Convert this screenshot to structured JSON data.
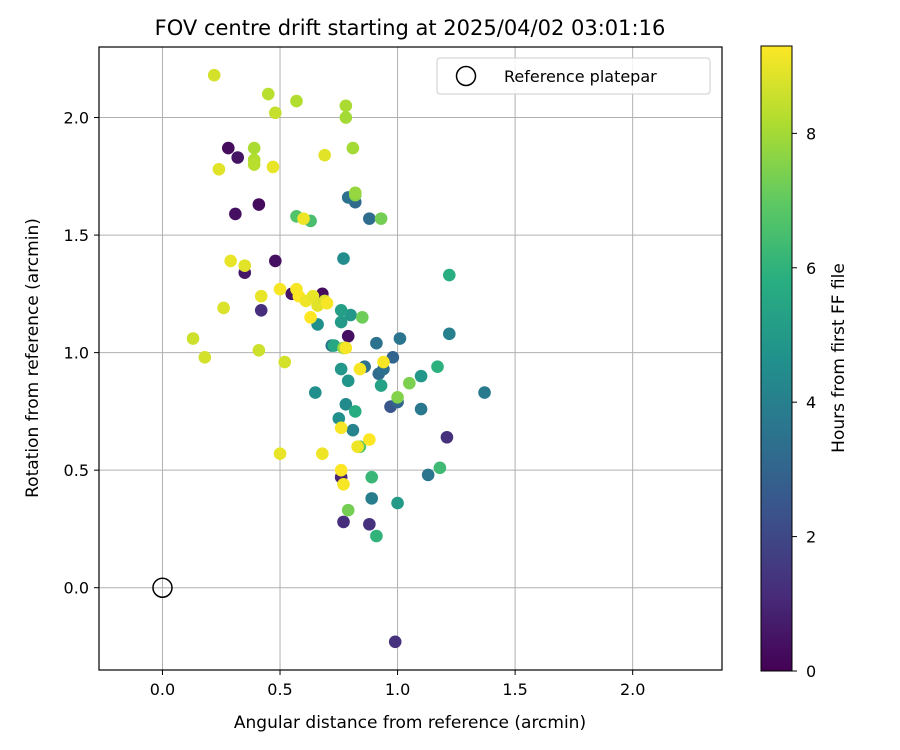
{
  "chart_data": {
    "type": "scatter",
    "title": "FOV centre drift starting at 2025/04/02 03:01:16",
    "xlabel": "Angular distance from reference (arcmin)",
    "ylabel": "Rotation from reference (arcmin)",
    "xlim": [
      -0.27,
      2.38
    ],
    "ylim": [
      -0.35,
      2.3
    ],
    "xticks": [
      0.0,
      0.5,
      1.0,
      1.5,
      2.0
    ],
    "xtick_labels": [
      "0.0",
      "0.5",
      "1.0",
      "1.5",
      "2.0"
    ],
    "yticks": [
      0.0,
      0.5,
      1.0,
      1.5,
      2.0
    ],
    "ytick_labels": [
      "0.0",
      "0.5",
      "1.0",
      "1.5",
      "2.0"
    ],
    "grid": true,
    "colormap": "viridis",
    "colorbar": {
      "label": "Hours from first FF file",
      "range": [
        0,
        9.3
      ],
      "ticks": [
        0,
        2,
        4,
        6,
        8
      ],
      "tick_labels": [
        "0",
        "2",
        "4",
        "6",
        "8"
      ]
    },
    "legend": {
      "placement": "top-right",
      "entries": [
        {
          "label": "Reference platepar",
          "marker": "open-circle",
          "color": "#000000"
        }
      ]
    },
    "reference_point": {
      "x": 0.0,
      "y": 0.0
    },
    "points": [
      {
        "x": 0.28,
        "y": 1.87,
        "h": 0.3
      },
      {
        "x": 0.32,
        "y": 1.83,
        "h": 0.5
      },
      {
        "x": 0.31,
        "y": 1.59,
        "h": 0.4
      },
      {
        "x": 0.41,
        "y": 1.63,
        "h": 0.3
      },
      {
        "x": 0.35,
        "y": 1.34,
        "h": 0.6
      },
      {
        "x": 0.48,
        "y": 1.39,
        "h": 0.4
      },
      {
        "x": 0.42,
        "y": 1.18,
        "h": 1.2
      },
      {
        "x": 0.55,
        "y": 1.25,
        "h": 0.5
      },
      {
        "x": 0.68,
        "y": 1.25,
        "h": 0.3
      },
      {
        "x": 0.79,
        "y": 1.07,
        "h": 0.4
      },
      {
        "x": 0.76,
        "y": 0.47,
        "h": 1.0
      },
      {
        "x": 0.77,
        "y": 0.28,
        "h": 1.2
      },
      {
        "x": 0.88,
        "y": 0.27,
        "h": 1.3
      },
      {
        "x": 0.99,
        "y": -0.23,
        "h": 1.3
      },
      {
        "x": 1.21,
        "y": 0.64,
        "h": 1.3
      },
      {
        "x": 0.97,
        "y": 0.77,
        "h": 2.5
      },
      {
        "x": 0.98,
        "y": 0.98,
        "h": 3.0
      },
      {
        "x": 0.91,
        "y": 1.04,
        "h": 3.5
      },
      {
        "x": 0.82,
        "y": 1.64,
        "h": 3.2
      },
      {
        "x": 0.79,
        "y": 1.66,
        "h": 3.5
      },
      {
        "x": 0.88,
        "y": 1.57,
        "h": 3.3
      },
      {
        "x": 0.72,
        "y": 1.03,
        "h": 3.8
      },
      {
        "x": 0.86,
        "y": 0.94,
        "h": 3.5
      },
      {
        "x": 0.92,
        "y": 0.91,
        "h": 3.2
      },
      {
        "x": 0.94,
        "y": 0.93,
        "h": 3.4
      },
      {
        "x": 1.01,
        "y": 1.06,
        "h": 3.6
      },
      {
        "x": 1.22,
        "y": 1.08,
        "h": 4.0
      },
      {
        "x": 1.37,
        "y": 0.83,
        "h": 3.8
      },
      {
        "x": 1.1,
        "y": 0.76,
        "h": 3.7
      },
      {
        "x": 1.13,
        "y": 0.48,
        "h": 3.6
      },
      {
        "x": 0.89,
        "y": 0.38,
        "h": 3.9
      },
      {
        "x": 0.81,
        "y": 0.67,
        "h": 4.1
      },
      {
        "x": 0.78,
        "y": 0.78,
        "h": 4.4
      },
      {
        "x": 0.75,
        "y": 0.72,
        "h": 4.6
      },
      {
        "x": 0.77,
        "y": 1.4,
        "h": 4.5
      },
      {
        "x": 0.66,
        "y": 1.12,
        "h": 4.6
      },
      {
        "x": 0.65,
        "y": 0.83,
        "h": 4.6
      },
      {
        "x": 1.0,
        "y": 0.79,
        "h": 3.0
      },
      {
        "x": 0.79,
        "y": 0.88,
        "h": 4.8
      },
      {
        "x": 0.76,
        "y": 0.93,
        "h": 4.9
      },
      {
        "x": 0.76,
        "y": 1.13,
        "h": 5.0
      },
      {
        "x": 0.8,
        "y": 1.16,
        "h": 4.9
      },
      {
        "x": 1.1,
        "y": 0.9,
        "h": 4.9
      },
      {
        "x": 1.0,
        "y": 0.36,
        "h": 5.0
      },
      {
        "x": 0.76,
        "y": 1.18,
        "h": 5.2
      },
      {
        "x": 0.93,
        "y": 0.86,
        "h": 5.3
      },
      {
        "x": 0.82,
        "y": 0.75,
        "h": 5.7
      },
      {
        "x": 0.73,
        "y": 1.03,
        "h": 5.5
      },
      {
        "x": 1.22,
        "y": 1.33,
        "h": 5.8
      },
      {
        "x": 1.17,
        "y": 0.94,
        "h": 5.9
      },
      {
        "x": 0.91,
        "y": 0.22,
        "h": 6.0
      },
      {
        "x": 0.89,
        "y": 0.47,
        "h": 6.2
      },
      {
        "x": 1.18,
        "y": 0.51,
        "h": 6.3
      },
      {
        "x": 0.63,
        "y": 1.56,
        "h": 6.5
      },
      {
        "x": 0.57,
        "y": 1.58,
        "h": 6.7
      },
      {
        "x": 0.84,
        "y": 0.6,
        "h": 6.8
      },
      {
        "x": 0.93,
        "y": 1.57,
        "h": 7.3
      },
      {
        "x": 0.85,
        "y": 1.15,
        "h": 7.2
      },
      {
        "x": 1.0,
        "y": 0.81,
        "h": 7.5
      },
      {
        "x": 1.05,
        "y": 0.87,
        "h": 7.4
      },
      {
        "x": 0.79,
        "y": 0.33,
        "h": 7.3
      },
      {
        "x": 0.82,
        "y": 1.67,
        "h": 7.6
      },
      {
        "x": 0.82,
        "y": 1.68,
        "h": 7.8
      },
      {
        "x": 0.77,
        "y": 1.02,
        "h": 7.9
      },
      {
        "x": 0.81,
        "y": 1.87,
        "h": 8.0
      },
      {
        "x": 0.78,
        "y": 2.05,
        "h": 8.1
      },
      {
        "x": 0.78,
        "y": 2.0,
        "h": 8.0
      },
      {
        "x": 0.57,
        "y": 2.07,
        "h": 8.2
      },
      {
        "x": 0.45,
        "y": 2.1,
        "h": 8.3
      },
      {
        "x": 0.39,
        "y": 1.87,
        "h": 8.1
      },
      {
        "x": 0.39,
        "y": 1.82,
        "h": 8.2
      },
      {
        "x": 0.39,
        "y": 1.8,
        "h": 8.3
      },
      {
        "x": 0.48,
        "y": 2.02,
        "h": 8.5
      },
      {
        "x": 0.22,
        "y": 2.18,
        "h": 8.7
      },
      {
        "x": 0.24,
        "y": 1.78,
        "h": 8.9
      },
      {
        "x": 0.47,
        "y": 1.79,
        "h": 9.0
      },
      {
        "x": 0.69,
        "y": 1.84,
        "h": 8.9
      },
      {
        "x": 0.6,
        "y": 1.57,
        "h": 9.1
      },
      {
        "x": 0.29,
        "y": 1.39,
        "h": 9.0
      },
      {
        "x": 0.35,
        "y": 1.37,
        "h": 8.9
      },
      {
        "x": 0.26,
        "y": 1.19,
        "h": 8.8
      },
      {
        "x": 0.42,
        "y": 1.24,
        "h": 9.0
      },
      {
        "x": 0.13,
        "y": 1.06,
        "h": 8.6
      },
      {
        "x": 0.18,
        "y": 0.98,
        "h": 8.7
      },
      {
        "x": 0.41,
        "y": 1.01,
        "h": 8.6
      },
      {
        "x": 0.52,
        "y": 0.96,
        "h": 8.7
      },
      {
        "x": 0.5,
        "y": 0.57,
        "h": 9.0
      },
      {
        "x": 0.5,
        "y": 1.27,
        "h": 9.2
      },
      {
        "x": 0.57,
        "y": 1.27,
        "h": 9.2
      },
      {
        "x": 0.58,
        "y": 1.24,
        "h": 9.3
      },
      {
        "x": 0.61,
        "y": 1.22,
        "h": 9.1
      },
      {
        "x": 0.64,
        "y": 1.24,
        "h": 9.0
      },
      {
        "x": 0.66,
        "y": 1.2,
        "h": 8.9
      },
      {
        "x": 0.63,
        "y": 1.15,
        "h": 9.3
      },
      {
        "x": 0.69,
        "y": 1.22,
        "h": 8.8
      },
      {
        "x": 0.7,
        "y": 1.21,
        "h": 9.2
      },
      {
        "x": 0.68,
        "y": 0.57,
        "h": 9.1
      },
      {
        "x": 0.76,
        "y": 0.68,
        "h": 9.2
      },
      {
        "x": 0.76,
        "y": 0.5,
        "h": 9.3
      },
      {
        "x": 0.77,
        "y": 0.44,
        "h": 9.2
      },
      {
        "x": 0.83,
        "y": 0.6,
        "h": 9.1
      },
      {
        "x": 0.88,
        "y": 0.63,
        "h": 9.3
      },
      {
        "x": 0.84,
        "y": 0.93,
        "h": 9.2
      },
      {
        "x": 0.94,
        "y": 0.96,
        "h": 9.2
      },
      {
        "x": 0.78,
        "y": 1.02,
        "h": 9.2
      }
    ]
  }
}
